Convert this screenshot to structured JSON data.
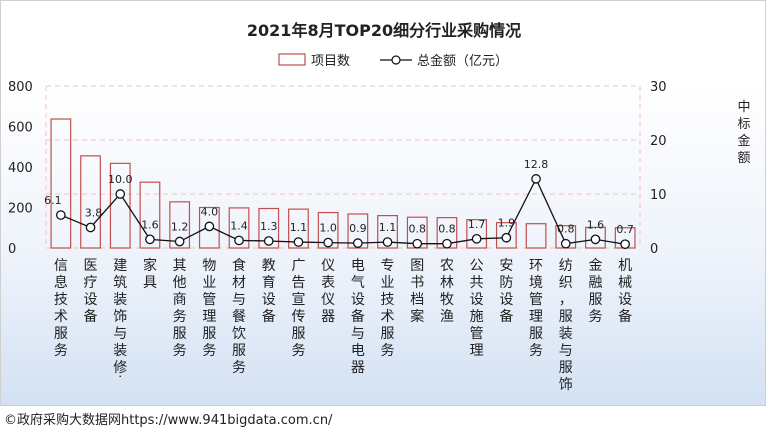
{
  "chart_data": {
    "type": "bar",
    "title": "2021年8月TOP20细分行业采购情况",
    "categories": [
      "信息技术服务",
      "医疗设备",
      "建筑装饰与装修...",
      "家具",
      "其他商务服务",
      "物业管理服务",
      "食材与餐饮服务",
      "教育设备",
      "广告宣传服务",
      "仪表仪器",
      "电气设备与电器",
      "专业技术服务",
      "图书档案",
      "农林牧渔",
      "公共设施管理",
      "安防设备",
      "环境管理服务",
      "纺织，服装与服饰",
      "金融服务",
      "机械设备"
    ],
    "series": [
      {
        "name": "项目数",
        "type": "bar",
        "axis": "left",
        "values": [
          637,
          455,
          418,
          325,
          228,
          200,
          198,
          195,
          192,
          175,
          168,
          160,
          152,
          150,
          140,
          125,
          120,
          110,
          102,
          100
        ]
      },
      {
        "name": "总金额（亿元）",
        "type": "line",
        "axis": "right",
        "values": [
          6.1,
          3.8,
          10.0,
          1.6,
          1.2,
          4.0,
          1.4,
          1.3,
          1.1,
          1.0,
          0.9,
          1.1,
          0.8,
          0.8,
          1.7,
          1.9,
          12.8,
          0.8,
          1.6,
          0.7
        ],
        "labels": [
          "6.1",
          "3.8",
          "10.0",
          "1.6",
          "1.2",
          "4.0",
          "1.4",
          "1.3",
          "1.1",
          "1.0",
          "0.9",
          "1.1",
          "0.8",
          "0.8",
          "1.7",
          "1.9",
          "12.8",
          "0.8",
          "1.6",
          "0.7"
        ]
      }
    ],
    "yticks_left": [
      "0",
      "200",
      "400",
      "600",
      "800"
    ],
    "yticks_right": [
      "0",
      "10",
      "20",
      "30"
    ],
    "ylim_left": [
      0,
      800
    ],
    "ylim_right": [
      0,
      30
    ],
    "ylabel_right": "中标金额",
    "legend": "top-center",
    "grid": true,
    "colors": {
      "bar_edge": "#c0504d",
      "line": "#111111",
      "grid": "#f4c2c2",
      "text": "#222222"
    }
  },
  "footer": "©政府采购大数据网https://www.941bigdata.com.cn/"
}
